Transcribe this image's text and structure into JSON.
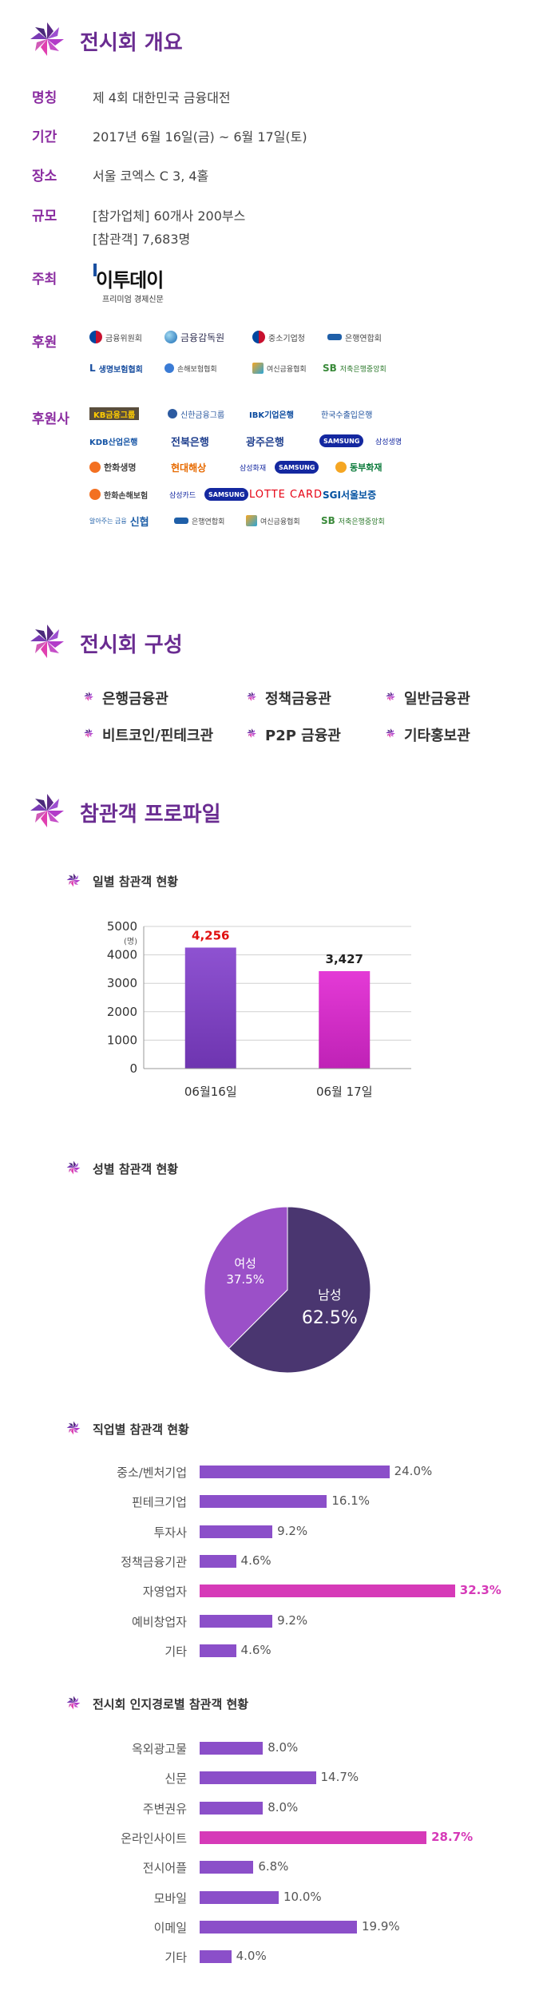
{
  "overview": {
    "title": "전시회 개요",
    "rows": [
      {
        "label": "명칭",
        "value": "제 4회 대한민국 금융대전"
      },
      {
        "label": "기간",
        "value": "2017년 6월 16일(금) ~ 6월 17일(토)"
      },
      {
        "label": "장소",
        "value": "서울 코엑스 C 3, 4홀"
      },
      {
        "label": "규모",
        "value": "[참가업체] 60개사 200부스",
        "value2": "[참관객] 7,683명"
      }
    ],
    "host_label": "주최",
    "host_name": "이투데이",
    "host_tagline": "프리미엄 경제신문",
    "sponsor_label": "후원",
    "sponsors": [
      "금융위원회",
      "금융감독원",
      "중소기업청",
      "은행연합회",
      "생명보험협회",
      "손해보험협회",
      "여신금융협회",
      "저축은행중앙회"
    ],
    "supporter_label": "후원사",
    "supporters": [
      "KB금융그룹",
      "신한금융그룹",
      "IBK기업은행",
      "한국수출입은행",
      "KDB산업은행",
      "전북은행",
      "광주은행",
      "SAMSUNG",
      "삼성생명",
      "한화생명",
      "현대해상",
      "삼성화재",
      "SAMSUNG",
      "동부화재",
      "한화손해보험",
      "삼성카드",
      "SAMSUNG",
      "LOTTE CARD",
      "SGI서울보증",
      "알아주는 금융",
      "신협",
      "은행연합회",
      "여신금융협회",
      "저축은행중앙회"
    ]
  },
  "composition": {
    "title": "전시회 구성",
    "items": [
      "은행금융관",
      "정책금융관",
      "일반금융관",
      "비트코인/핀테크관",
      "P2P 금융관",
      "기타홍보관"
    ]
  },
  "profile": {
    "title": "참관객 프로파일",
    "daily_title": "일별 참관객 현황",
    "gender_title": "성별 참관객 현황",
    "job_title": "직업별 참관객 현황",
    "route_title": "전시회 인지경로별 참관객 현황"
  },
  "colors": {
    "purple_dark": "#6a2c91",
    "bar_purple": "#8b4fc9",
    "bar_magenta": "#d634c8",
    "highlight": "#d63ab8",
    "pie_dark": "#4a3670",
    "pie_light": "#9b50c8"
  },
  "chart_data": [
    {
      "type": "bar",
      "categories": [
        "06월16일",
        "06월 17일"
      ],
      "values": [
        4256,
        3427
      ],
      "value_labels": [
        "4,256",
        "3,427"
      ],
      "ylabel": "(명)",
      "ylim": [
        0,
        5000
      ],
      "yticks": [
        0,
        1000,
        2000,
        3000,
        4000,
        5000
      ],
      "grid": true
    },
    {
      "type": "pie",
      "categories": [
        "남성",
        "여성"
      ],
      "values": [
        62.5,
        37.5
      ],
      "value_labels": [
        "62.5%",
        "37.5%"
      ]
    },
    {
      "type": "bar",
      "orientation": "horizontal",
      "categories": [
        "중소/벤처기업",
        "핀테크기업",
        "투자사",
        "정책금융기관",
        "자영업자",
        "예비창업자",
        "기타"
      ],
      "values": [
        24.0,
        16.1,
        9.2,
        4.6,
        32.3,
        9.2,
        4.6
      ],
      "value_labels": [
        "24.0%",
        "16.1%",
        "9.2%",
        "4.6%",
        "32.3%",
        "9.2%",
        "4.6%"
      ],
      "highlight_index": 4
    },
    {
      "type": "bar",
      "orientation": "horizontal",
      "categories": [
        "옥외광고물",
        "신문",
        "주변권유",
        "온라인사이트",
        "전시어플",
        "모바일",
        "이메일",
        "기타"
      ],
      "values": [
        8.0,
        14.7,
        8.0,
        28.7,
        6.8,
        10.0,
        19.9,
        4.0
      ],
      "value_labels": [
        "8.0%",
        "14.7%",
        "8.0%",
        "28.7%",
        "6.8%",
        "10.0%",
        "19.9%",
        "4.0%"
      ],
      "highlight_index": 3
    }
  ]
}
